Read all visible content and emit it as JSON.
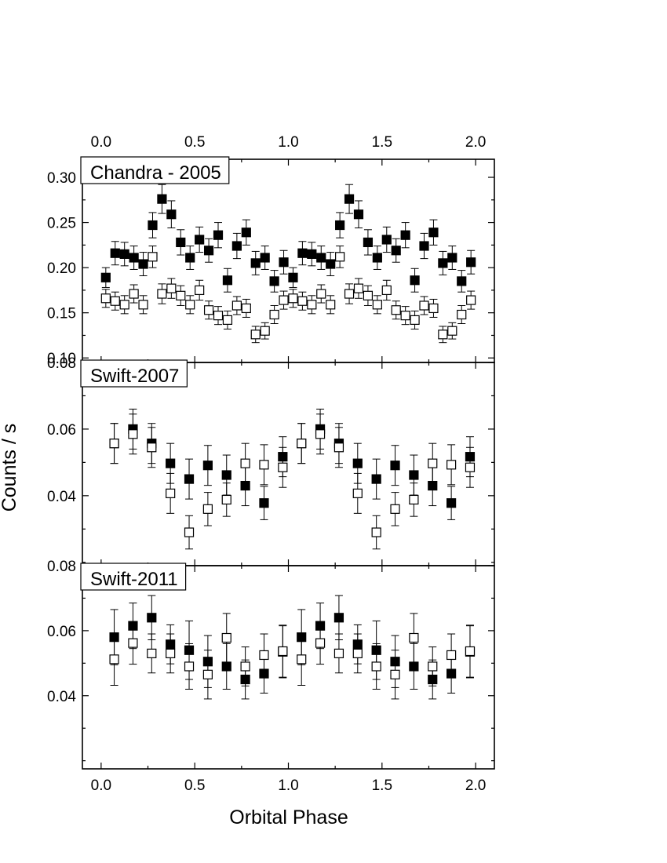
{
  "chart_data": {
    "type": "scatter",
    "xlabel": "Orbital Phase",
    "ylabel": "Counts / s",
    "xlim": [
      -0.1,
      2.1
    ],
    "x_ticks": [
      0.0,
      0.5,
      1.0,
      1.5,
      2.0
    ],
    "x_tick_labels": [
      "0.0",
      "0.5",
      "1.0",
      "1.5",
      "2.0"
    ],
    "top_axis_tick_labels": true,
    "marker_styles": [
      "filled-square",
      "open-square"
    ],
    "panels": [
      {
        "label": "Chandra - 2005",
        "ylim": [
          0.095,
          0.32
        ],
        "y_ticks": [
          0.1,
          0.15,
          0.2,
          0.25,
          0.3
        ],
        "y_tick_labels": [
          "0.10",
          "0.15",
          "0.20",
          "0.25",
          "0.30"
        ],
        "series": [
          {
            "marker": "filled-square",
            "x": [
              0.025,
              0.075,
              0.125,
              0.175,
              0.225,
              0.275,
              0.325,
              0.375,
              0.425,
              0.475,
              0.525,
              0.575,
              0.625,
              0.675,
              0.725,
              0.775,
              0.825,
              0.875,
              0.925,
              0.975,
              1.025,
              1.075,
              1.125,
              1.175,
              1.225,
              1.275,
              1.325,
              1.375,
              1.425,
              1.475,
              1.525,
              1.575,
              1.625,
              1.675,
              1.725,
              1.775,
              1.825,
              1.875,
              1.925,
              1.975
            ],
            "y": [
              0.189,
              0.216,
              0.215,
              0.211,
              0.204,
              0.247,
              0.276,
              0.259,
              0.228,
              0.211,
              0.231,
              0.219,
              0.236,
              0.186,
              0.224,
              0.239,
              0.205,
              0.211,
              0.185,
              0.206,
              0.189,
              0.216,
              0.215,
              0.211,
              0.204,
              0.247,
              0.276,
              0.259,
              0.228,
              0.211,
              0.231,
              0.219,
              0.236,
              0.186,
              0.224,
              0.239,
              0.205,
              0.211,
              0.185,
              0.206
            ],
            "yerr": [
              0.011,
              0.013,
              0.013,
              0.013,
              0.013,
              0.014,
              0.016,
              0.015,
              0.014,
              0.013,
              0.014,
              0.013,
              0.014,
              0.013,
              0.014,
              0.014,
              0.013,
              0.013,
              0.012,
              0.013,
              0.011,
              0.013,
              0.013,
              0.013,
              0.013,
              0.014,
              0.016,
              0.015,
              0.014,
              0.013,
              0.014,
              0.013,
              0.014,
              0.013,
              0.014,
              0.014,
              0.013,
              0.013,
              0.012,
              0.013
            ]
          },
          {
            "marker": "open-square",
            "x": [
              0.025,
              0.075,
              0.125,
              0.175,
              0.225,
              0.275,
              0.325,
              0.375,
              0.425,
              0.475,
              0.525,
              0.575,
              0.625,
              0.675,
              0.725,
              0.775,
              0.825,
              0.875,
              0.925,
              0.975,
              1.025,
              1.075,
              1.125,
              1.175,
              1.225,
              1.275,
              1.325,
              1.375,
              1.425,
              1.475,
              1.525,
              1.575,
              1.625,
              1.675,
              1.725,
              1.775,
              1.825,
              1.875,
              1.925,
              1.975
            ],
            "y": [
              0.166,
              0.163,
              0.159,
              0.171,
              0.159,
              0.212,
              0.171,
              0.177,
              0.169,
              0.159,
              0.175,
              0.153,
              0.147,
              0.142,
              0.158,
              0.155,
              0.126,
              0.13,
              0.148,
              0.164,
              0.166,
              0.163,
              0.159,
              0.171,
              0.159,
              0.212,
              0.171,
              0.177,
              0.169,
              0.159,
              0.175,
              0.153,
              0.147,
              0.142,
              0.158,
              0.155,
              0.126,
              0.13,
              0.148,
              0.164
            ],
            "yerr": [
              0.01,
              0.01,
              0.01,
              0.01,
              0.01,
              0.012,
              0.011,
              0.011,
              0.011,
              0.01,
              0.011,
              0.01,
              0.01,
              0.01,
              0.01,
              0.01,
              0.009,
              0.009,
              0.01,
              0.01,
              0.01,
              0.01,
              0.01,
              0.01,
              0.01,
              0.012,
              0.011,
              0.011,
              0.011,
              0.01,
              0.011,
              0.01,
              0.01,
              0.01,
              0.01,
              0.01,
              0.009,
              0.009,
              0.01,
              0.01
            ]
          }
        ]
      },
      {
        "label": "Swift-2007",
        "ylim": [
          0.019,
          0.08
        ],
        "y_ticks": [
          0.04,
          0.06,
          0.08
        ],
        "y_tick_labels": [
          "0.04",
          "0.06",
          "0.08"
        ],
        "series": [
          {
            "marker": "filled-square",
            "x": [
              0.07,
              0.17,
              0.27,
              0.37,
              0.47,
              0.57,
              0.67,
              0.77,
              0.87,
              0.97,
              1.07,
              1.17,
              1.27,
              1.37,
              1.47,
              1.57,
              1.67,
              1.77,
              1.87,
              1.97
            ],
            "y": [
              0.0557,
              0.06,
              0.0557,
              0.0497,
              0.045,
              0.0491,
              0.0462,
              0.043,
              0.0378,
              0.0517,
              0.0557,
              0.06,
              0.0557,
              0.0497,
              0.045,
              0.0491,
              0.0462,
              0.043,
              0.0378,
              0.0517
            ],
            "yerr": [
              0.006,
              0.006,
              0.006,
              0.006,
              0.006,
              0.006,
              0.006,
              0.006,
              0.005,
              0.006,
              0.006,
              0.006,
              0.006,
              0.006,
              0.006,
              0.006,
              0.006,
              0.006,
              0.005,
              0.006
            ]
          },
          {
            "marker": "open-square",
            "x": [
              0.07,
              0.17,
              0.27,
              0.37,
              0.47,
              0.57,
              0.67,
              0.77,
              0.87,
              0.97,
              1.07,
              1.17,
              1.27,
              1.37,
              1.47,
              1.57,
              1.67,
              1.77,
              1.87,
              1.97
            ],
            "y": [
              0.0557,
              0.0585,
              0.0545,
              0.0407,
              0.029,
              0.036,
              0.0388,
              0.0497,
              0.0493,
              0.0485,
              0.0557,
              0.0585,
              0.0545,
              0.0407,
              0.029,
              0.036,
              0.0388,
              0.0497,
              0.0493,
              0.0485
            ],
            "yerr": [
              0.006,
              0.006,
              0.006,
              0.006,
              0.005,
              0.005,
              0.005,
              0.006,
              0.006,
              0.006,
              0.006,
              0.006,
              0.006,
              0.006,
              0.005,
              0.005,
              0.005,
              0.006,
              0.006,
              0.006
            ]
          }
        ]
      },
      {
        "label": "Swift-2011",
        "ylim": [
          0.0175,
          0.08
        ],
        "y_ticks": [
          0.04,
          0.06,
          0.08
        ],
        "y_tick_labels": [
          "0.04",
          "0.06",
          "0.08"
        ],
        "series": [
          {
            "marker": "filled-square",
            "x": [
              0.07,
              0.17,
              0.27,
              0.37,
              0.47,
              0.57,
              0.67,
              0.77,
              0.87,
              0.97,
              1.07,
              1.17,
              1.27,
              1.37,
              1.47,
              1.57,
              1.67,
              1.77,
              1.87,
              1.97
            ],
            "y": [
              0.058,
              0.0615,
              0.064,
              0.0558,
              0.054,
              0.0505,
              0.049,
              0.045,
              0.0468,
              0.0535,
              0.058,
              0.0615,
              0.064,
              0.0558,
              0.054,
              0.0505,
              0.049,
              0.045,
              0.0468,
              0.0535
            ],
            "yerr": [
              0.0085,
              0.007,
              0.0068,
              0.006,
              0.009,
              0.008,
              0.007,
              0.006,
              0.006,
              0.008,
              0.0085,
              0.007,
              0.0068,
              0.006,
              0.009,
              0.008,
              0.007,
              0.006,
              0.006,
              0.008
            ]
          },
          {
            "marker": "open-square",
            "x": [
              0.07,
              0.17,
              0.27,
              0.37,
              0.47,
              0.57,
              0.67,
              0.77,
              0.87,
              0.97,
              1.07,
              1.17,
              1.27,
              1.37,
              1.47,
              1.57,
              1.67,
              1.77,
              1.87,
              1.97
            ],
            "y": [
              0.0512,
              0.0562,
              0.053,
              0.053,
              0.049,
              0.0465,
              0.0578,
              0.049,
              0.0525,
              0.0537,
              0.0512,
              0.0562,
              0.053,
              0.053,
              0.049,
              0.0465,
              0.0578,
              0.049,
              0.0525,
              0.0537
            ],
            "yerr": [
              0.008,
              0.0065,
              0.006,
              0.006,
              0.007,
              0.0075,
              0.0075,
              0.006,
              0.0065,
              0.008,
              0.008,
              0.0065,
              0.006,
              0.006,
              0.007,
              0.0075,
              0.0075,
              0.006,
              0.0065,
              0.008
            ]
          }
        ]
      }
    ]
  }
}
